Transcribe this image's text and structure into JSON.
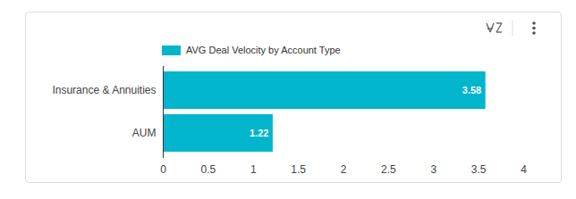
{
  "chart_data": {
    "type": "bar",
    "orientation": "horizontal",
    "categories": [
      "Insurance & Annuities",
      "AUM"
    ],
    "series": [
      {
        "name": "AVG Deal Velocity by Account Type",
        "color": "#00b5cc",
        "values": [
          3.58,
          1.22
        ]
      }
    ],
    "xlim": [
      0,
      4
    ],
    "xticks": [
      0,
      0.5,
      1,
      1.5,
      2,
      2.5,
      3,
      3.5,
      4
    ],
    "grid": false,
    "legend": "top",
    "data_labels": true
  }
}
